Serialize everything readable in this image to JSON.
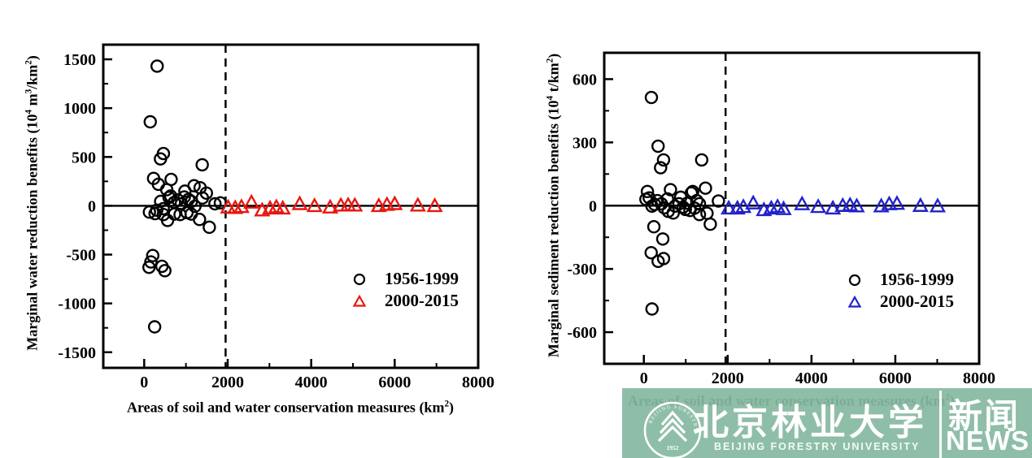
{
  "chart_data": [
    {
      "type": "scatter",
      "title": "",
      "xlabel_parts": {
        "pre": "Areas of soil and water conservation measures (km",
        "sup": "2",
        "post": ")"
      },
      "ylabel_parts": {
        "pre": "Marginal water reduction benefits (10",
        "sup1": "4",
        "mid1": " m",
        "sup2": "3",
        "mid2": "/km",
        "sup3": "2",
        "post": ")"
      },
      "x_range": [
        -980,
        8000
      ],
      "y_range": [
        -1660,
        1650
      ],
      "x_major": [
        0,
        2000,
        4000,
        6000,
        8000
      ],
      "x_minor": [
        1000,
        3000,
        5000,
        7000
      ],
      "y_major": [
        -1500,
        -1000,
        -500,
        0,
        500,
        1000,
        1500
      ],
      "y_minor": [
        -1250,
        -750,
        -250,
        250,
        750,
        1250
      ],
      "zero_line_y": 0,
      "dashed_line_x": 1950,
      "legend_position": "lower-right-inside",
      "series": [
        {
          "name": "1956-1999",
          "marker": "circle",
          "color": "#000000",
          "points": [
            [
              310,
              1430
            ],
            [
              145,
              860
            ],
            [
              390,
              480
            ],
            [
              460,
              535
            ],
            [
              1390,
              420
            ],
            [
              225,
              280
            ],
            [
              340,
              220
            ],
            [
              645,
              270
            ],
            [
              540,
              165
            ],
            [
              635,
              100
            ],
            [
              975,
              150
            ],
            [
              1195,
              205
            ],
            [
              1340,
              185
            ],
            [
              1490,
              130
            ],
            [
              1060,
              65
            ],
            [
              395,
              45
            ],
            [
              595,
              85
            ],
            [
              805,
              60
            ],
            [
              960,
              90
            ],
            [
              1395,
              80
            ],
            [
              1695,
              20
            ],
            [
              1825,
              30
            ],
            [
              455,
              -30
            ],
            [
              300,
              -45
            ],
            [
              720,
              35
            ],
            [
              890,
              20
            ],
            [
              1130,
              45
            ],
            [
              125,
              -65
            ],
            [
              260,
              -80
            ],
            [
              460,
              -90
            ],
            [
              560,
              -150
            ],
            [
              725,
              -85
            ],
            [
              860,
              -90
            ],
            [
              1025,
              -70
            ],
            [
              1125,
              -85
            ],
            [
              1215,
              -5
            ],
            [
              1325,
              -140
            ],
            [
              1560,
              -220
            ],
            [
              205,
              -510
            ],
            [
              160,
              -575
            ],
            [
              115,
              -630
            ],
            [
              425,
              -620
            ],
            [
              495,
              -665
            ],
            [
              250,
              -1240
            ]
          ]
        },
        {
          "name": "2000-2015",
          "marker": "triangle",
          "color": "#e8170f",
          "points": [
            [
              2010,
              -15
            ],
            [
              2180,
              -20
            ],
            [
              2330,
              -10
            ],
            [
              2570,
              35
            ],
            [
              2825,
              -45
            ],
            [
              3015,
              -25
            ],
            [
              3165,
              -12
            ],
            [
              3320,
              -25
            ],
            [
              3725,
              20
            ],
            [
              4080,
              0
            ],
            [
              4455,
              -15
            ],
            [
              4710,
              5
            ],
            [
              4885,
              8
            ],
            [
              5045,
              5
            ],
            [
              5620,
              0
            ],
            [
              5815,
              12
            ],
            [
              6000,
              20
            ],
            [
              6555,
              5
            ],
            [
              6960,
              0
            ]
          ]
        }
      ]
    },
    {
      "type": "scatter",
      "title": "",
      "xlabel_parts": {
        "pre": "Areas of soil and water conservation measures (km",
        "sup": "2",
        "post": ")"
      },
      "ylabel_parts": {
        "pre": "Marginal sediment reduction benefits (10",
        "sup1": "4",
        "mid1": " t/km",
        "sup2": "2",
        "mid2": "",
        "sup3": "",
        "post": ")"
      },
      "x_range": [
        -945,
        8000
      ],
      "y_range": [
        -750,
        725
      ],
      "x_major": [
        0,
        2000,
        4000,
        6000,
        8000
      ],
      "x_minor": [
        1000,
        3000,
        5000,
        7000
      ],
      "y_major": [
        -600,
        -300,
        0,
        300,
        600
      ],
      "y_minor": [
        -450,
        -150,
        150,
        450
      ],
      "zero_line_y": 0,
      "dashed_line_x": 1950,
      "legend_position": "lower-right-inside",
      "series": [
        {
          "name": "1956-1999",
          "marker": "circle",
          "color": "#000000",
          "points": [
            [
              180,
              513
            ],
            [
              340,
              282
            ],
            [
              400,
              180
            ],
            [
              470,
              217
            ],
            [
              1380,
              217
            ],
            [
              85,
              67
            ],
            [
              635,
              76
            ],
            [
              1165,
              67
            ],
            [
              1470,
              83
            ],
            [
              128,
              37
            ],
            [
              322,
              24
            ],
            [
              563,
              32
            ],
            [
              1132,
              60
            ],
            [
              880,
              40
            ],
            [
              194,
              -2
            ],
            [
              258,
              6
            ],
            [
              419,
              9
            ],
            [
              485,
              -10
            ],
            [
              582,
              -27
            ],
            [
              744,
              -2
            ],
            [
              841,
              9
            ],
            [
              938,
              -7
            ],
            [
              1035,
              12
            ],
            [
              1100,
              -23
            ],
            [
              1262,
              24
            ],
            [
              1326,
              9
            ],
            [
              1326,
              -42
            ],
            [
              1507,
              -36
            ],
            [
              1585,
              -88
            ],
            [
              1779,
              22
            ],
            [
              700,
              -35
            ],
            [
              990,
              -18
            ],
            [
              1210,
              -12
            ],
            [
              50,
              30
            ],
            [
              239,
              -100
            ],
            [
              452,
              -158
            ],
            [
              175,
              -223
            ],
            [
              341,
              -264
            ],
            [
              471,
              -251
            ],
            [
              195,
              -490
            ]
          ]
        },
        {
          "name": "2000-2015",
          "marker": "triangle",
          "color": "#2222cc",
          "points": [
            [
              2025,
              -12
            ],
            [
              2233,
              -12
            ],
            [
              2375,
              -5
            ],
            [
              2610,
              12
            ],
            [
              2865,
              -20
            ],
            [
              3040,
              -12
            ],
            [
              3190,
              -5
            ],
            [
              3335,
              -15
            ],
            [
              3775,
              8
            ],
            [
              4160,
              -5
            ],
            [
              4510,
              -12
            ],
            [
              4745,
              0
            ],
            [
              4920,
              3
            ],
            [
              5080,
              -2
            ],
            [
              5665,
              -2
            ],
            [
              5855,
              8
            ],
            [
              6040,
              10
            ],
            [
              6600,
              0
            ],
            [
              7010,
              -2
            ]
          ]
        }
      ]
    }
  ],
  "watermark": {
    "band_color": "#87b9a1",
    "text_color": "#ffffff",
    "logo_year": "1952",
    "logo_ring_text": "BEIJING FORESTRY UNIVERSITY",
    "university_name_cn": "北京林业大学",
    "university_name_en": "BEIJING FORESTRY UNIVERSITY",
    "news_cn": "新闻",
    "news_en": "NEWS"
  }
}
